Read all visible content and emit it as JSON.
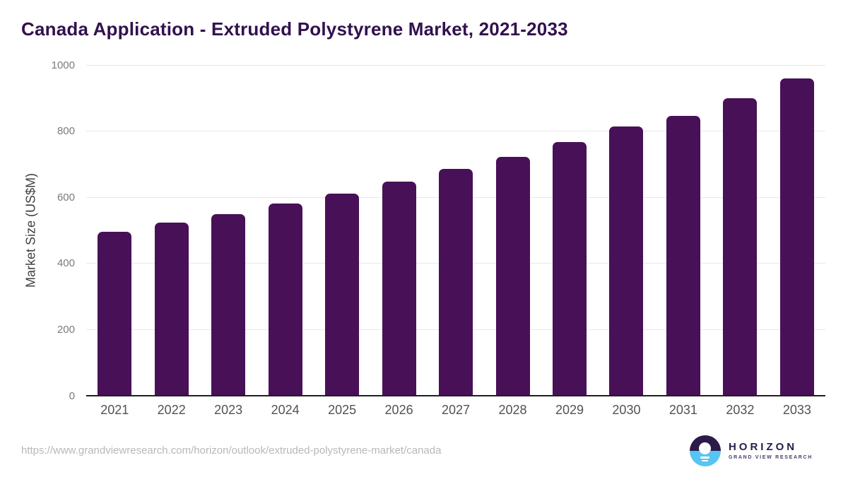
{
  "title": "Canada Application - Extruded Polystyrene Market, 2021-2033",
  "chart_data": {
    "type": "bar",
    "title": "Canada Application - Extruded Polystyrene Market, 2021-2033",
    "categories": [
      "2021",
      "2022",
      "2023",
      "2024",
      "2025",
      "2026",
      "2027",
      "2028",
      "2029",
      "2030",
      "2031",
      "2032",
      "2033"
    ],
    "values": [
      493,
      521,
      548,
      580,
      609,
      645,
      684,
      720,
      766,
      812,
      845,
      898,
      957
    ],
    "xlabel": "",
    "ylabel": "Market Size (US$M)",
    "ylim": [
      0,
      1000
    ],
    "yticks": [
      0,
      200,
      400,
      600,
      800,
      1000
    ],
    "grid": "horizontal",
    "legend": "none",
    "bar_color": "#481057"
  },
  "colors": {
    "background": "#ffffff",
    "title_text": "#31114e",
    "bar": "#481057",
    "gridline": "#e8e8e8",
    "axis_line": "#1f1f1f",
    "ytick_text": "#7a7a7a",
    "xtick_text": "#525252",
    "ylabel_text": "#404040",
    "url_text": "#b8b8b8",
    "logo_purple": "#2b1b4a",
    "logo_blue": "#56c5f2",
    "logo_subtitle_text": "#4a3a6b"
  },
  "footer": {
    "source_url": "https://www.grandviewresearch.com/horizon/outlook/extruded-polystyrene-market/canada",
    "logo": {
      "title": "HORIZON",
      "subtitle": "GRAND VIEW RESEARCH"
    }
  }
}
